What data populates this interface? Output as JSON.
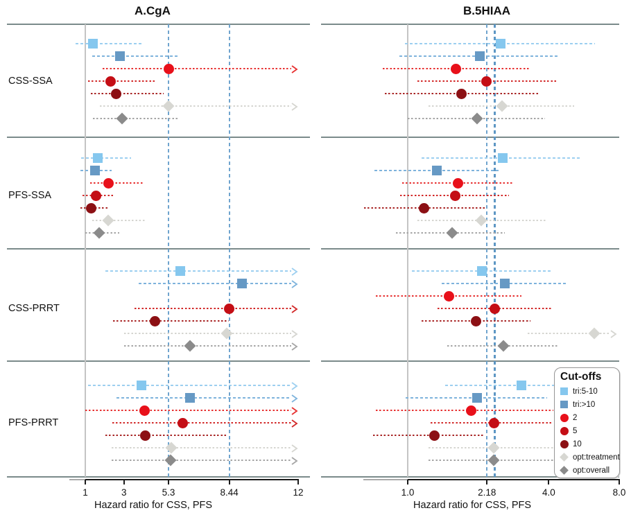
{
  "figure": {
    "panel_a_title": "A.CgA",
    "panel_b_title": "B.5HIAA"
  },
  "legend": {
    "title": "Cut-offs",
    "items": [
      {
        "key": "tri:5-10",
        "label": "tri:5-10",
        "shape": "square",
        "color": "#85C7EE",
        "ci_color": "#9CCFF0"
      },
      {
        "key": "tri:>10",
        "label": "tri:>10",
        "shape": "square",
        "color": "#6699C4",
        "ci_color": "#7EB3DC"
      },
      {
        "key": "2",
        "label": "2",
        "shape": "circle",
        "color": "#E8101A",
        "ci_color": "#E73030"
      },
      {
        "key": "5",
        "label": "5",
        "shape": "circle",
        "color": "#C40E15",
        "ci_color": "#D22828"
      },
      {
        "key": "10",
        "label": "10",
        "shape": "circle",
        "color": "#8C1014",
        "ci_color": "#A82525"
      },
      {
        "key": "opt:treatment",
        "label": "opt:treatment",
        "shape": "diamond",
        "color": "#D7D7D2",
        "ci_color": "#D5D5D0"
      },
      {
        "key": "opt:overall",
        "label": "opt:overall",
        "shape": "diamond",
        "color": "#8B8B8B",
        "ci_color": "#A5A5A5"
      }
    ]
  },
  "chart_data": {
    "type": "forest",
    "xlabel": "Hazard ratio for CSS, PFS",
    "colors": {
      "separator": "#7A8A8A",
      "ref_line": "#C4C4C4",
      "dashed_line": "#6FA4CE",
      "dashed_line_bold": "#5E97C4",
      "axis": "#1A1A1A",
      "axis_lead": "#A9A9A9"
    },
    "panels": [
      {
        "title": "A.CgA",
        "scale": "linear",
        "xlim": [
          1,
          12
        ],
        "ticks": [
          {
            "v": 1,
            "label": "1"
          },
          {
            "v": 3,
            "label": "3"
          },
          {
            "v": 5.3,
            "label": "5.3"
          },
          {
            "v": 8.44,
            "label": "8.44"
          },
          {
            "v": 12,
            "label": "12"
          }
        ],
        "ref_line": 1,
        "dashed_lines": [
          {
            "v": 5.3
          },
          {
            "v": 8.44
          }
        ],
        "groups": [
          {
            "label": "CSS-SSA",
            "rows": [
              {
                "cutoff": "tri:5-10",
                "hr": 1.4,
                "lo": 0.5,
                "hi": 4.0
              },
              {
                "cutoff": "tri:>10",
                "hr": 2.8,
                "lo": 1.35,
                "hi": 5.85
              },
              {
                "cutoff": "2",
                "hr": 5.3,
                "lo": 1.9,
                "hi": 12,
                "arrow": true
              },
              {
                "cutoff": "5",
                "hr": 2.3,
                "lo": 1.15,
                "hi": 4.6
              },
              {
                "cutoff": "10",
                "hr": 2.6,
                "lo": 1.3,
                "hi": 5.05
              },
              {
                "cutoff": "opt:treatment",
                "hr": 5.3,
                "lo": 1.75,
                "hi": 12,
                "arrow": true
              },
              {
                "cutoff": "opt:overall",
                "hr": 2.9,
                "lo": 1.4,
                "hi": 5.8
              }
            ]
          },
          {
            "label": "PFS-SSA",
            "rows": [
              {
                "cutoff": "tri:5-10",
                "hr": 1.65,
                "lo": 0.8,
                "hi": 3.35
              },
              {
                "cutoff": "tri:>10",
                "hr": 1.5,
                "lo": 0.75,
                "hi": 2.35
              },
              {
                "cutoff": "2",
                "hr": 2.2,
                "lo": 1.25,
                "hi": 4.05
              },
              {
                "cutoff": "5",
                "hr": 1.55,
                "lo": 0.85,
                "hi": 2.5
              },
              {
                "cutoff": "10",
                "hr": 1.3,
                "lo": 0.75,
                "hi": 2.2
              },
              {
                "cutoff": "opt:treatment",
                "hr": 2.2,
                "lo": 1.35,
                "hi": 4.1
              },
              {
                "cutoff": "opt:overall",
                "hr": 1.7,
                "lo": 1.0,
                "hi": 2.75
              }
            ]
          },
          {
            "label": "CSS-PRRT",
            "rows": [
              {
                "cutoff": "tri:5-10",
                "hr": 5.9,
                "lo": 2.05,
                "hi": 12,
                "arrow": true
              },
              {
                "cutoff": "tri:>10",
                "hr": 9.1,
                "lo": 3.75,
                "hi": 12,
                "arrow": true
              },
              {
                "cutoff": "5",
                "hr": 8.44,
                "lo": 3.55,
                "hi": 12,
                "arrow": true
              },
              {
                "cutoff": "10",
                "hr": 4.6,
                "lo": 2.45,
                "hi": 8.4
              },
              {
                "cutoff": "opt:treatment",
                "hr": 8.3,
                "lo": 3.0,
                "hi": 12,
                "arrow": true
              },
              {
                "cutoff": "opt:overall",
                "hr": 6.4,
                "lo": 3.0,
                "hi": 12,
                "arrow": true
              }
            ]
          },
          {
            "label": "PFS-PRRT",
            "rows": [
              {
                "cutoff": "tri:5-10",
                "hr": 3.9,
                "lo": 1.15,
                "hi": 12,
                "arrow": true
              },
              {
                "cutoff": "tri:>10",
                "hr": 6.4,
                "lo": 2.6,
                "hi": 12,
                "arrow": true
              },
              {
                "cutoff": "2",
                "hr": 4.05,
                "lo": 1.0,
                "hi": 12,
                "arrow": true
              },
              {
                "cutoff": "5",
                "hr": 6.05,
                "lo": 2.4,
                "hi": 12,
                "arrow": true
              },
              {
                "cutoff": "10",
                "hr": 4.1,
                "lo": 2.05,
                "hi": 8.3
              },
              {
                "cutoff": "opt:treatment",
                "hr": 5.45,
                "lo": 2.35,
                "hi": 12,
                "arrow": true
              },
              {
                "cutoff": "opt:overall",
                "hr": 5.4,
                "lo": 2.35,
                "hi": 12,
                "arrow": true
              }
            ]
          }
        ]
      },
      {
        "title": "B.5HIAA",
        "scale": "log2",
        "xlim": [
          1,
          8
        ],
        "ticks": [
          {
            "v": 1,
            "label": "1.0"
          },
          {
            "v": 2.18,
            "label": "2.18"
          },
          {
            "v": 4,
            "label": "4.0"
          },
          {
            "v": 8,
            "label": "8.0"
          }
        ],
        "ref_line": 1,
        "dashed_lines": [
          {
            "v": 2.18
          },
          {
            "v": 2.36,
            "bold": true
          }
        ],
        "groups": [
          {
            "label": "CSS-SSA",
            "rows": [
              {
                "cutoff": "tri:5-10",
                "hr": 2.5,
                "lo": 0.97,
                "hi": 6.3
              },
              {
                "cutoff": "tri:>10",
                "hr": 2.03,
                "lo": 0.92,
                "hi": 4.4
              },
              {
                "cutoff": "2",
                "hr": 1.61,
                "lo": 0.78,
                "hi": 3.35
              },
              {
                "cutoff": "5",
                "hr": 2.17,
                "lo": 1.1,
                "hi": 4.3
              },
              {
                "cutoff": "10",
                "hr": 1.7,
                "lo": 0.8,
                "hi": 3.65
              },
              {
                "cutoff": "opt:treatment",
                "hr": 2.53,
                "lo": 1.23,
                "hi": 5.15
              },
              {
                "cutoff": "opt:overall",
                "hr": 1.98,
                "lo": 1.0,
                "hi": 3.85
              }
            ]
          },
          {
            "label": "PFS-SSA",
            "rows": [
              {
                "cutoff": "tri:5-10",
                "hr": 2.55,
                "lo": 1.15,
                "hi": 5.5
              },
              {
                "cutoff": "tri:>10",
                "hr": 1.33,
                "lo": 0.72,
                "hi": 2.45
              },
              {
                "cutoff": "2",
                "hr": 1.64,
                "lo": 0.95,
                "hi": 2.8
              },
              {
                "cutoff": "5",
                "hr": 1.6,
                "lo": 0.93,
                "hi": 2.7
              },
              {
                "cutoff": "10",
                "hr": 1.17,
                "lo": 0.65,
                "hi": 2.15
              },
              {
                "cutoff": "opt:treatment",
                "hr": 2.06,
                "lo": 1.1,
                "hi": 3.95
              },
              {
                "cutoff": "opt:overall",
                "hr": 1.55,
                "lo": 0.89,
                "hi": 2.6
              }
            ]
          },
          {
            "label": "CSS-PRRT",
            "rows": [
              {
                "cutoff": "tri:5-10",
                "hr": 2.07,
                "lo": 1.04,
                "hi": 4.15
              },
              {
                "cutoff": "tri:>10",
                "hr": 2.6,
                "lo": 1.4,
                "hi": 4.8
              },
              {
                "cutoff": "2",
                "hr": 1.5,
                "lo": 0.73,
                "hi": 3.05
              },
              {
                "cutoff": "5",
                "hr": 2.36,
                "lo": 1.34,
                "hi": 4.15
              },
              {
                "cutoff": "10",
                "hr": 1.96,
                "lo": 1.15,
                "hi": 3.35
              },
              {
                "cutoff": "opt:treatment",
                "hr": 6.25,
                "lo": 3.25,
                "hi": 8,
                "arrow": true
              },
              {
                "cutoff": "opt:overall",
                "hr": 2.56,
                "lo": 1.47,
                "hi": 4.4
              }
            ]
          },
          {
            "label": "PFS-PRRT",
            "rows": [
              {
                "cutoff": "tri:5-10",
                "hr": 3.06,
                "lo": 1.45,
                "hi": 4.25
              },
              {
                "cutoff": "tri:>10",
                "hr": 1.98,
                "lo": 0.98,
                "hi": 3.95
              },
              {
                "cutoff": "2",
                "hr": 1.86,
                "lo": 0.73,
                "hi": 4.2
              },
              {
                "cutoff": "5",
                "hr": 2.34,
                "lo": 1.25,
                "hi": 4.2
              },
              {
                "cutoff": "10",
                "hr": 1.3,
                "lo": 0.71,
                "hi": 2.12
              },
              {
                "cutoff": "opt:treatment",
                "hr": 2.33,
                "lo": 1.23,
                "hi": 4.2
              },
              {
                "cutoff": "opt:overall",
                "hr": 2.33,
                "lo": 1.23,
                "hi": 4.2
              }
            ]
          }
        ]
      }
    ]
  }
}
